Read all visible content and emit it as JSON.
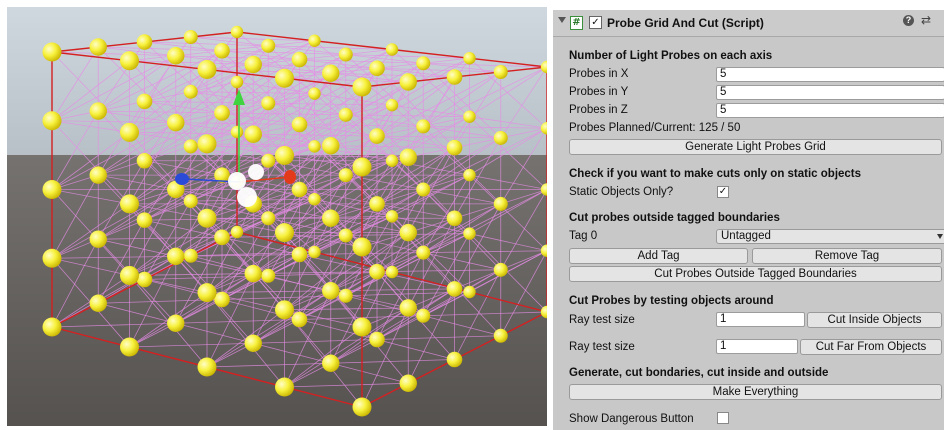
{
  "component": {
    "title": "Probe Grid And Cut (Script)",
    "script_icon": "#",
    "enabled_mark": "✓",
    "help_icon": "?",
    "settings_icon": "⇄"
  },
  "probes": {
    "section_title": "Number of Light Probes on each axis",
    "x_label": "Probes in X",
    "x_value": "5",
    "y_label": "Probes in Y",
    "y_value": "5",
    "z_label": "Probes in Z",
    "z_value": "5",
    "planned_label": "Probes Planned/Current:",
    "planned_value": "125 / 50",
    "generate_button": "Generate Light Probes Grid"
  },
  "static": {
    "section_title": "Check if you want to make cuts only on static objects",
    "label": "Static Objects Only?",
    "checked_mark": "✓"
  },
  "tags": {
    "section_title": "Cut probes outside tagged boundaries",
    "tag_label": "Tag 0",
    "tag_value": "Untagged",
    "add_button": "Add Tag",
    "remove_button": "Remove Tag",
    "cut_button": "Cut Probes Outside Tagged Boundaries"
  },
  "ray": {
    "section_title": "Cut Probes by testing objects around",
    "label1": "Ray test size",
    "value1": "1",
    "button1": "Cut Inside Objects",
    "label2": "Ray test size",
    "value2": "1",
    "button2": "Cut Far From Objects"
  },
  "everything": {
    "section_title": "Generate, cut bondaries, cut inside and outside",
    "button": "Make Everything"
  },
  "danger": {
    "label": "Show Dangerous Button"
  },
  "scene": {
    "probe_color": "#f5f03a",
    "bounds_color": "#d42020",
    "link_color": "#e68ce6"
  }
}
